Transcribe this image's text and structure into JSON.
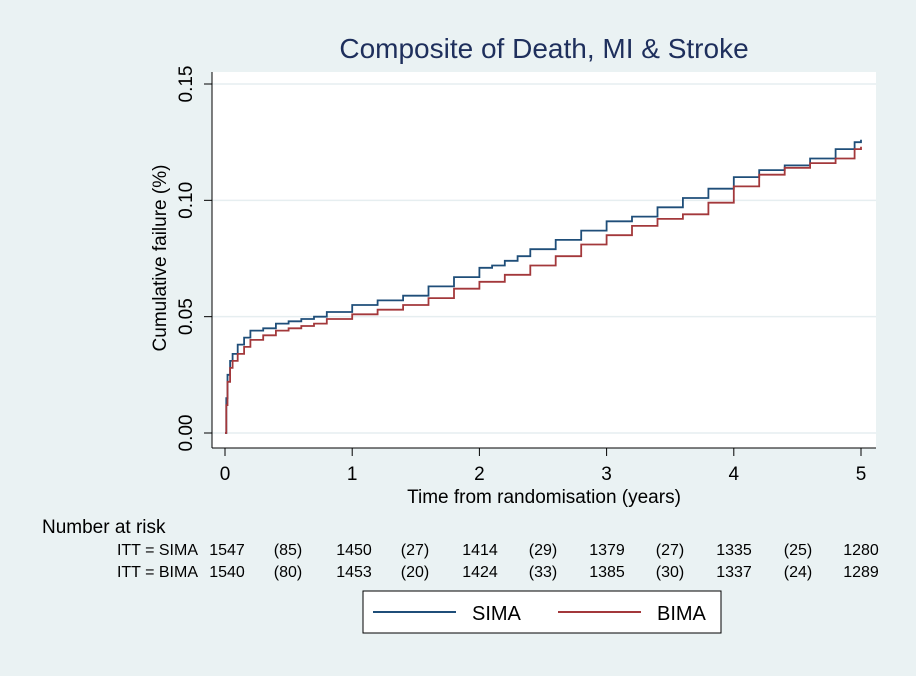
{
  "chart_data": {
    "type": "line",
    "title": "Composite of Death, MI & Stroke",
    "xlabel": "Time from randomisation (years)",
    "ylabel": "Cumulative failure (%)",
    "xlim": [
      0,
      5
    ],
    "ylim": [
      0,
      0.15
    ],
    "x_ticks": [
      "0",
      "1",
      "2",
      "3",
      "4",
      "5"
    ],
    "y_ticks": [
      "0.00",
      "0.05",
      "0.10",
      "0.15"
    ],
    "grid": true,
    "legend_position": "bottom",
    "colors": {
      "SIMA": "#1f4e79",
      "BIMA": "#a3383b",
      "background": "#eaf2f3",
      "plot": "#ffffff"
    },
    "series": [
      {
        "name": "SIMA",
        "x": [
          0,
          0.01,
          0.02,
          0.04,
          0.06,
          0.1,
          0.15,
          0.2,
          0.3,
          0.4,
          0.5,
          0.6,
          0.7,
          0.8,
          1.0,
          1.2,
          1.4,
          1.6,
          1.8,
          2.0,
          2.1,
          2.2,
          2.3,
          2.4,
          2.6,
          2.8,
          3.0,
          3.2,
          3.4,
          3.6,
          3.8,
          4.0,
          4.2,
          4.4,
          4.6,
          4.8,
          4.95,
          5.0
        ],
        "y": [
          0,
          0.015,
          0.025,
          0.031,
          0.034,
          0.038,
          0.041,
          0.044,
          0.045,
          0.047,
          0.048,
          0.049,
          0.05,
          0.052,
          0.055,
          0.057,
          0.059,
          0.063,
          0.067,
          0.071,
          0.072,
          0.074,
          0.076,
          0.079,
          0.083,
          0.087,
          0.091,
          0.093,
          0.097,
          0.101,
          0.105,
          0.11,
          0.113,
          0.115,
          0.118,
          0.122,
          0.125,
          0.126
        ]
      },
      {
        "name": "BIMA",
        "x": [
          0,
          0.01,
          0.02,
          0.04,
          0.06,
          0.1,
          0.15,
          0.2,
          0.3,
          0.4,
          0.5,
          0.6,
          0.7,
          0.8,
          1.0,
          1.2,
          1.4,
          1.6,
          1.8,
          2.0,
          2.2,
          2.4,
          2.6,
          2.8,
          3.0,
          3.2,
          3.4,
          3.6,
          3.8,
          4.0,
          4.2,
          4.4,
          4.6,
          4.8,
          4.95,
          5.0
        ],
        "y": [
          0,
          0.012,
          0.022,
          0.028,
          0.031,
          0.034,
          0.037,
          0.04,
          0.042,
          0.044,
          0.045,
          0.046,
          0.047,
          0.049,
          0.051,
          0.053,
          0.055,
          0.058,
          0.062,
          0.065,
          0.068,
          0.072,
          0.076,
          0.081,
          0.085,
          0.089,
          0.092,
          0.094,
          0.099,
          0.106,
          0.111,
          0.114,
          0.116,
          0.118,
          0.122,
          0.123
        ]
      }
    ]
  },
  "risk_table": {
    "title": "Number at risk",
    "rows": [
      {
        "label": "ITT = SIMA",
        "values": [
          "1547",
          "(85)",
          "1450",
          "(27)",
          "1414",
          "(29)",
          "1379",
          "(27)",
          "1335",
          "(25)",
          "1280"
        ]
      },
      {
        "label": "ITT = BIMA",
        "values": [
          "1540",
          "(80)",
          "1453",
          "(20)",
          "1424",
          "(33)",
          "1385",
          "(30)",
          "1337",
          "(24)",
          "1289"
        ]
      }
    ]
  },
  "legend": {
    "items": [
      "SIMA",
      "BIMA"
    ]
  }
}
